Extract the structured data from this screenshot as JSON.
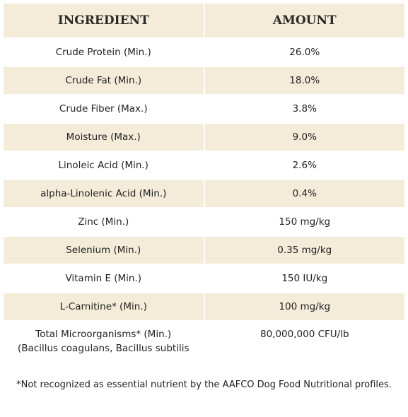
{
  "table": {
    "header": [
      "INGREDIENT",
      "AMOUNT"
    ],
    "rows": [
      [
        "Crude Protein (Min.)",
        "26.0%"
      ],
      [
        "Crude Fat (Min.)",
        "18.0%"
      ],
      [
        "Crude Fiber (Max.)",
        "3.8%"
      ],
      [
        "Moisture (Max.)",
        "9.0%"
      ],
      [
        "Linoleic Acid (Min.)",
        "2.6%"
      ],
      [
        "alpha-Linolenic Acid (Min.)",
        "0.4%"
      ],
      [
        "Zinc (Min.)",
        "150 mg/kg"
      ],
      [
        "Selenium (Min.)",
        "0.35 mg/kg"
      ],
      [
        "Vitamin E (Min.)",
        "150 IU/kg"
      ],
      [
        "L-Carnitine* (Min.)",
        "100 mg/kg"
      ],
      [
        "Total Microorganisms* (Min.)\n(Bacillus coagulans, Bacillus subtilis",
        "80,000,000 CFU/lb"
      ]
    ]
  },
  "footnote": "*Not recognized as essential nutrient by the AAFCO Dog Food Nutritional profiles."
}
